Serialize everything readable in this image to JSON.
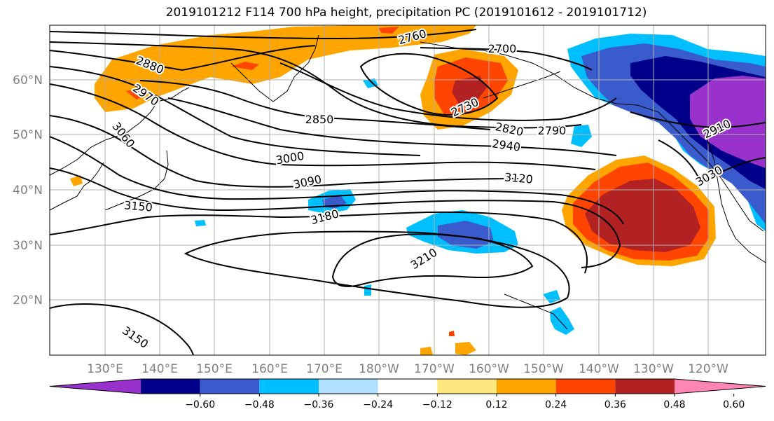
{
  "title": "2019101212 F114 700 hPa height, precipitation PC (2019101612 - 2019101712)",
  "lat_labels": [
    "60°N",
    "50°N",
    "40°N",
    "30°N",
    "20°N"
  ],
  "lon_labels": [
    "130°E",
    "140°E",
    "150°E",
    "160°E",
    "170°E",
    "180°W",
    "170°W",
    "160°W",
    "150°W",
    "140°W",
    "130°W",
    "120°W"
  ],
  "contour_labels": [
    "2760",
    "2700",
    "2880",
    "2970",
    "2730",
    "2850",
    "2820",
    "2790",
    "3060",
    "2940",
    "2910",
    "3000",
    "3120",
    "3030",
    "3090",
    "3150",
    "3180",
    "3210",
    "3150"
  ],
  "colorbar": {
    "ticks": [
      "−0.60",
      "−0.48",
      "−0.36",
      "−0.24",
      "−0.12",
      "0.12",
      "0.24",
      "0.36",
      "0.48",
      "0.60"
    ],
    "colors": [
      "#9932cc",
      "#00008b",
      "#3a5bcc",
      "#00bfff",
      "#b0e0ff",
      "#ffffff",
      "#ffe680",
      "#ffa500",
      "#ff4500",
      "#b22222",
      "#ff85b3"
    ]
  }
}
